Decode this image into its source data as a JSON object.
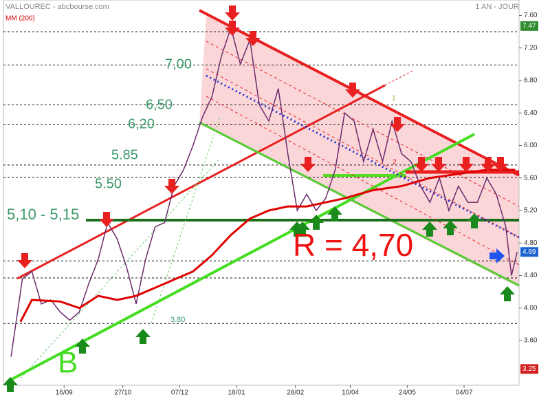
{
  "chart_data": {
    "type": "line",
    "title": "VALLOUREC - abcbourse.com",
    "period": "1 AN - JOUR",
    "ma_label": "MM (200)",
    "x": [
      4,
      10,
      15,
      20,
      25,
      30,
      35,
      40,
      45,
      50,
      55,
      60,
      65,
      70,
      75,
      80,
      85,
      90,
      95,
      100,
      105,
      110,
      115,
      120,
      125,
      130,
      135,
      140,
      145,
      150,
      155,
      160,
      165,
      170,
      175,
      180,
      185,
      190,
      195,
      200,
      205,
      210,
      215,
      220,
      225,
      230,
      235,
      240,
      245,
      250,
      255,
      260,
      265,
      268,
      271
    ],
    "series": [
      {
        "name": "VALLOUREC",
        "color": "#6b2a6b",
        "values": [
          3.4,
          4.36,
          4.45,
          4.05,
          4.1,
          3.95,
          3.85,
          3.95,
          4.3,
          4.6,
          5.05,
          4.85,
          4.5,
          4.05,
          4.6,
          5.0,
          5.05,
          5.5,
          5.7,
          6.0,
          6.35,
          6.6,
          7.1,
          7.45,
          7.0,
          7.3,
          6.5,
          6.3,
          6.7,
          5.9,
          5.2,
          5.4,
          5.2,
          5.35,
          5.7,
          6.4,
          6.3,
          5.8,
          6.2,
          5.8,
          6.3,
          5.9,
          5.8,
          5.5,
          5.3,
          5.6,
          5.2,
          5.5,
          5.3,
          5.3,
          5.6,
          5.4,
          5.0,
          4.4,
          4.69
        ]
      },
      {
        "name": "MM (200)",
        "color": "#e00000",
        "x": [
          9,
          15,
          30,
          40,
          50,
          60,
          70,
          85,
          100,
          110,
          120,
          130,
          140,
          150,
          160,
          170,
          180,
          195,
          210,
          225,
          240,
          255,
          270
        ],
        "values": [
          3.83,
          4.1,
          4.08,
          4.0,
          4.15,
          4.1,
          4.15,
          4.3,
          4.45,
          4.65,
          4.9,
          5.1,
          5.2,
          5.25,
          5.25,
          5.3,
          5.35,
          5.45,
          5.5,
          5.6,
          5.65,
          5.7,
          5.7
        ]
      }
    ],
    "xlim": [
      0,
      272
    ],
    "xticks": [
      {
        "value": 32,
        "label": "16/09"
      },
      {
        "value": 63,
        "label": "27/10"
      },
      {
        "value": 93,
        "label": "07/12"
      },
      {
        "value": 123,
        "label": "18/01"
      },
      {
        "value": 154,
        "label": "28/02"
      },
      {
        "value": 183,
        "label": "10/04"
      },
      {
        "value": 213,
        "label": "24/05"
      },
      {
        "value": 243,
        "label": "04/07"
      }
    ],
    "ylim": [
      3.05,
      7.79
    ],
    "yticks": [
      {
        "value": 3.6,
        "label": "3.60"
      },
      {
        "value": 4.0,
        "label": "4.00"
      },
      {
        "value": 4.4,
        "label": "4.40"
      },
      {
        "value": 4.8,
        "label": "4.80"
      },
      {
        "value": 5.2,
        "label": "5.20"
      },
      {
        "value": 5.6,
        "label": "5.60"
      },
      {
        "value": 6.0,
        "label": "6.00"
      },
      {
        "value": 6.4,
        "label": "6.40"
      },
      {
        "value": 6.8,
        "label": "6.80"
      },
      {
        "value": 7.2,
        "label": "7.20"
      },
      {
        "value": 7.6,
        "label": "7.60"
      }
    ],
    "price_labels": [
      {
        "value": 7.47,
        "color": "#2e8b2e"
      },
      {
        "value": 4.69,
        "color": "#1e64d0"
      },
      {
        "value": 3.25,
        "color": "#d02020"
      }
    ],
    "levels": [
      7.4,
      6.99,
      6.5,
      6.26,
      5.76,
      5.61,
      4.58,
      4.37,
      3.81
    ],
    "annotations": [
      "7,00",
      "6,50",
      "6,20",
      "5.85",
      "5.50",
      "5,10 - 5,15",
      "R = 4,70",
      "B",
      "3.80",
      "1",
      "2"
    ]
  }
}
